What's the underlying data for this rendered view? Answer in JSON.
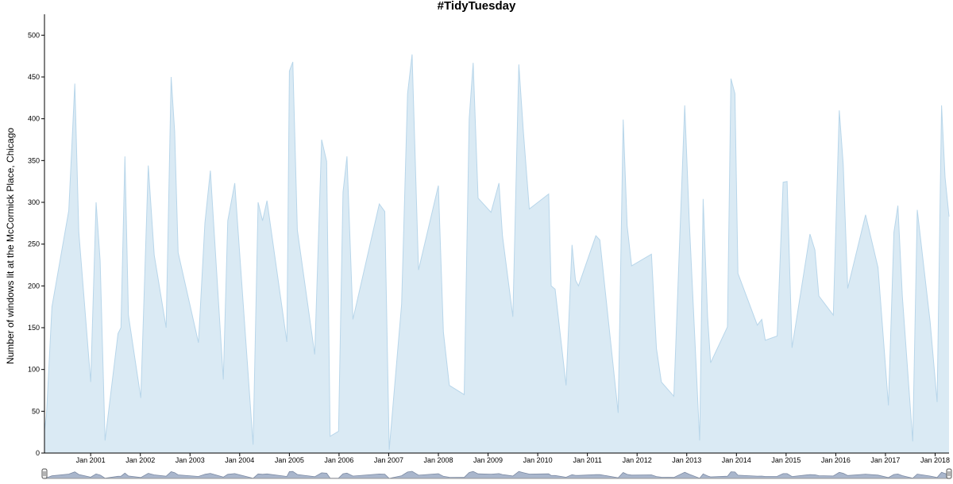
{
  "chart_data": {
    "type": "area",
    "title": "#TidyTuesday",
    "xlabel": "",
    "ylabel": "Number of windows lit at the McCormick Place, Chicago",
    "ylim": [
      0,
      525
    ],
    "xlim": [
      2000.07,
      2018.28
    ],
    "yticks": [
      0,
      50,
      100,
      150,
      200,
      250,
      300,
      350,
      400,
      450,
      500
    ],
    "xticks": [
      {
        "label": "Jan 2001",
        "x": 2001.0
      },
      {
        "label": "Jan 2002",
        "x": 2002.0
      },
      {
        "label": "Jan 2003",
        "x": 2003.0
      },
      {
        "label": "Jan 2004",
        "x": 2004.0
      },
      {
        "label": "Jan 2005",
        "x": 2005.0
      },
      {
        "label": "Jan 2006",
        "x": 2006.0
      },
      {
        "label": "Jan 2007",
        "x": 2007.0
      },
      {
        "label": "Jan 2008",
        "x": 2008.0
      },
      {
        "label": "Jan 2009",
        "x": 2009.0
      },
      {
        "label": "Jan 2010",
        "x": 2010.0
      },
      {
        "label": "Jan 2011",
        "x": 2011.0
      },
      {
        "label": "Jan 2012",
        "x": 2012.0
      },
      {
        "label": "Jan 2013",
        "x": 2013.0
      },
      {
        "label": "Jan 2014",
        "x": 2014.0
      },
      {
        "label": "Jan 2015",
        "x": 2015.0
      },
      {
        "label": "Jan 2016",
        "x": 2016.0
      },
      {
        "label": "Jan 2017",
        "x": 2017.0
      },
      {
        "label": "Jan 2018",
        "x": 2018.0
      }
    ],
    "grid": false,
    "legend": "none",
    "fill_color": "#daeaf4",
    "line_color": "#b8d6ea",
    "series": [
      {
        "points": [
          [
            2000.07,
            27
          ],
          [
            2000.11,
            45
          ],
          [
            2000.22,
            175
          ],
          [
            2000.56,
            290
          ],
          [
            2000.68,
            442
          ],
          [
            2000.76,
            265
          ],
          [
            2001.0,
            85
          ],
          [
            2001.11,
            300
          ],
          [
            2001.19,
            230
          ],
          [
            2001.29,
            15
          ],
          [
            2001.55,
            143
          ],
          [
            2001.61,
            150
          ],
          [
            2001.69,
            355
          ],
          [
            2001.76,
            165
          ],
          [
            2002.01,
            66
          ],
          [
            2002.16,
            344
          ],
          [
            2002.28,
            237
          ],
          [
            2002.52,
            150
          ],
          [
            2002.62,
            450
          ],
          [
            2002.69,
            385
          ],
          [
            2002.76,
            240
          ],
          [
            2003.17,
            132
          ],
          [
            2003.3,
            275
          ],
          [
            2003.41,
            338
          ],
          [
            2003.67,
            88
          ],
          [
            2003.76,
            278
          ],
          [
            2003.9,
            323
          ],
          [
            2004.27,
            10
          ],
          [
            2004.37,
            300
          ],
          [
            2004.46,
            278
          ],
          [
            2004.55,
            302
          ],
          [
            2004.95,
            133
          ],
          [
            2005.0,
            457
          ],
          [
            2005.07,
            468
          ],
          [
            2005.16,
            267
          ],
          [
            2005.51,
            118
          ],
          [
            2005.65,
            375
          ],
          [
            2005.75,
            349
          ],
          [
            2005.82,
            20
          ],
          [
            2005.99,
            26
          ],
          [
            2006.08,
            312
          ],
          [
            2006.16,
            355
          ],
          [
            2006.28,
            160
          ],
          [
            2006.81,
            298
          ],
          [
            2006.92,
            289
          ],
          [
            2007.01,
            4
          ],
          [
            2007.26,
            178
          ],
          [
            2007.38,
            430
          ],
          [
            2007.47,
            477
          ],
          [
            2007.6,
            219
          ],
          [
            2008.0,
            320
          ],
          [
            2008.1,
            145
          ],
          [
            2008.22,
            81
          ],
          [
            2008.52,
            70
          ],
          [
            2008.62,
            400
          ],
          [
            2008.7,
            467
          ],
          [
            2008.8,
            305
          ],
          [
            2009.06,
            288
          ],
          [
            2009.22,
            323
          ],
          [
            2009.29,
            260
          ],
          [
            2009.5,
            163
          ],
          [
            2009.62,
            465
          ],
          [
            2009.71,
            385
          ],
          [
            2009.83,
            292
          ],
          [
            2010.22,
            310
          ],
          [
            2010.27,
            200
          ],
          [
            2010.35,
            196
          ],
          [
            2010.57,
            81
          ],
          [
            2010.69,
            249
          ],
          [
            2010.76,
            207
          ],
          [
            2010.82,
            200
          ],
          [
            2011.17,
            260
          ],
          [
            2011.25,
            255
          ],
          [
            2011.62,
            48
          ],
          [
            2011.72,
            399
          ],
          [
            2011.8,
            272
          ],
          [
            2011.89,
            224
          ],
          [
            2012.29,
            238
          ],
          [
            2012.39,
            125
          ],
          [
            2012.49,
            85
          ],
          [
            2012.74,
            68
          ],
          [
            2012.96,
            416
          ],
          [
            2013.05,
            278
          ],
          [
            2013.26,
            15
          ],
          [
            2013.33,
            304
          ],
          [
            2013.42,
            163
          ],
          [
            2013.48,
            108
          ],
          [
            2013.82,
            151
          ],
          [
            2013.89,
            448
          ],
          [
            2013.97,
            430
          ],
          [
            2014.03,
            215
          ],
          [
            2014.42,
            153
          ],
          [
            2014.51,
            160
          ],
          [
            2014.58,
            135
          ],
          [
            2014.82,
            140
          ],
          [
            2014.94,
            324
          ],
          [
            2015.02,
            325
          ],
          [
            2015.12,
            126
          ],
          [
            2015.48,
            262
          ],
          [
            2015.58,
            243
          ],
          [
            2015.66,
            188
          ],
          [
            2015.95,
            165
          ],
          [
            2016.07,
            410
          ],
          [
            2016.15,
            345
          ],
          [
            2016.24,
            197
          ],
          [
            2016.6,
            285
          ],
          [
            2016.85,
            222
          ],
          [
            2017.06,
            57
          ],
          [
            2017.17,
            264
          ],
          [
            2017.25,
            296
          ],
          [
            2017.34,
            188
          ],
          [
            2017.55,
            14
          ],
          [
            2017.64,
            291
          ],
          [
            2017.9,
            157
          ],
          [
            2018.04,
            61
          ],
          [
            2018.13,
            416
          ],
          [
            2018.2,
            330
          ],
          [
            2018.28,
            283
          ]
        ]
      }
    ],
    "navigator_range": [
      2000.07,
      2018.28
    ]
  }
}
